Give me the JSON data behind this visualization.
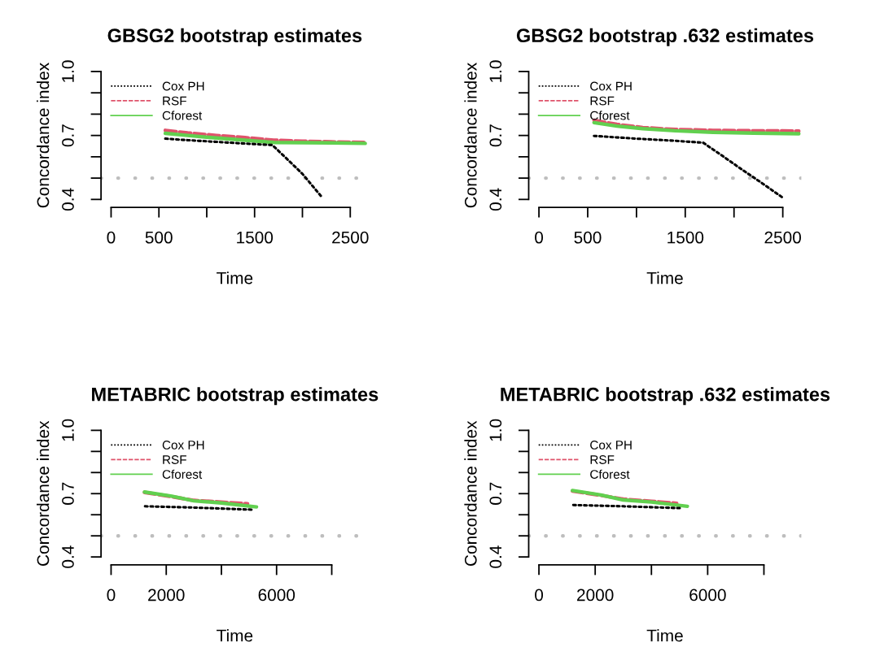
{
  "chart_data": [
    {
      "type": "line",
      "title": "GBSG2 bootstrap estimates",
      "xlabel": "Time",
      "ylabel": "Concordance index",
      "legend": "top left",
      "grid": false,
      "xlim": [
        -105,
        2690
      ],
      "ylim": [
        0.4,
        1.0
      ],
      "xticks": [
        0,
        500,
        {
          "value": 1000,
          "label": null
        },
        1500,
        {
          "value": 2000,
          "label": null
        },
        2500
      ],
      "yticks": [
        {
          "value": 0.4,
          "label": "0.4"
        },
        {
          "value": 0.5,
          "label": null
        },
        {
          "value": 0.6,
          "label": null
        },
        {
          "value": 0.7,
          "label": "0.7"
        },
        {
          "value": 0.8,
          "label": null
        },
        {
          "value": 0.9,
          "label": null
        },
        {
          "value": 1.0,
          "label": "1.0"
        }
      ],
      "ref_lines": [
        {
          "axis": "y",
          "value": 0.5,
          "color": "#bebebe",
          "line_style": "dotted"
        }
      ],
      "series": [
        {
          "name": "Cox PH",
          "color": "#000000",
          "line_style": "dotted",
          "x": [
            567,
            800,
            1100,
            1400,
            1686,
            1850,
            2000,
            2205
          ],
          "values": [
            0.685,
            0.678,
            0.67,
            0.662,
            0.655,
            0.585,
            0.52,
            0.41
          ]
        },
        {
          "name": "RSF",
          "color": "#df536b",
          "line_style": "dashed",
          "x": [
            567,
            800,
            1100,
            1400,
            1700,
            2000,
            2300,
            2656
          ],
          "values": [
            0.724,
            0.712,
            0.7,
            0.69,
            0.678,
            0.673,
            0.67,
            0.667
          ]
        },
        {
          "name": "Cforest",
          "color": "#61d04f",
          "line_style": "solid",
          "x": [
            567,
            800,
            1100,
            1400,
            1700,
            2000,
            2300,
            2656
          ],
          "values": [
            0.71,
            0.7,
            0.688,
            0.678,
            0.667,
            0.666,
            0.665,
            0.663
          ]
        }
      ]
    },
    {
      "type": "line",
      "title": "GBSG2 bootstrap .632 estimates",
      "xlabel": "Time",
      "ylabel": "Concordance index",
      "legend": "top left",
      "grid": false,
      "xlim": [
        -105,
        2690
      ],
      "ylim": [
        0.4,
        1.0
      ],
      "xticks": [
        0,
        500,
        {
          "value": 1000,
          "label": null
        },
        1500,
        {
          "value": 2000,
          "label": null
        },
        2500
      ],
      "yticks": [
        {
          "value": 0.4,
          "label": "0.4"
        },
        {
          "value": 0.5,
          "label": null
        },
        {
          "value": 0.6,
          "label": null
        },
        {
          "value": 0.7,
          "label": "0.7"
        },
        {
          "value": 0.8,
          "label": null
        },
        {
          "value": 0.9,
          "label": null
        },
        {
          "value": 1.0,
          "label": "1.0"
        }
      ],
      "ref_lines": [
        {
          "axis": "y",
          "value": 0.5,
          "color": "#bebebe",
          "line_style": "dotted"
        }
      ],
      "series": [
        {
          "name": "Cox PH",
          "color": "#000000",
          "line_style": "dotted",
          "x": [
            565,
            1000,
            1400,
            1684,
            1892,
            2094,
            2298,
            2500
          ],
          "values": [
            0.698,
            0.685,
            0.675,
            0.666,
            0.601,
            0.536,
            0.473,
            0.408
          ]
        },
        {
          "name": "RSF",
          "color": "#df536b",
          "line_style": "dashed",
          "x": [
            565,
            800,
            1064,
            1400,
            1785,
            2200,
            2664
          ],
          "values": [
            0.771,
            0.752,
            0.737,
            0.728,
            0.724,
            0.722,
            0.721
          ]
        },
        {
          "name": "Cforest",
          "color": "#61d04f",
          "line_style": "solid",
          "x": [
            565,
            800,
            1064,
            1400,
            1785,
            2200,
            2664
          ],
          "values": [
            0.76,
            0.744,
            0.732,
            0.722,
            0.715,
            0.711,
            0.708
          ]
        }
      ]
    },
    {
      "type": "line",
      "title": "METABRIC bootstrap estimates",
      "xlabel": "Time",
      "ylabel": "Concordance index",
      "legend": "top left",
      "grid": false,
      "xlim": [
        -364,
        9330
      ],
      "ylim": [
        0.4,
        1.0
      ],
      "xticks": [
        0,
        2000,
        {
          "value": 4000,
          "label": null
        },
        6000,
        {
          "value": 8000,
          "label": null
        }
      ],
      "yticks": [
        {
          "value": 0.4,
          "label": "0.4"
        },
        {
          "value": 0.5,
          "label": null
        },
        {
          "value": 0.6,
          "label": null
        },
        {
          "value": 0.7,
          "label": "0.7"
        },
        {
          "value": 0.8,
          "label": null
        },
        {
          "value": 0.9,
          "label": null
        },
        {
          "value": 1.0,
          "label": "1.0"
        }
      ],
      "ref_lines": [
        {
          "axis": "y",
          "value": 0.5,
          "color": "#bebebe",
          "line_style": "dotted"
        }
      ],
      "series": [
        {
          "name": "Cox PH",
          "color": "#000000",
          "line_style": "dotted",
          "x": [
            1232,
            3000,
            5123
          ],
          "values": [
            0.64,
            0.634,
            0.624
          ]
        },
        {
          "name": "RSF",
          "color": "#df536b",
          "line_style": "dashed",
          "x": [
            1212,
            2200,
            3000,
            4000,
            4946
          ],
          "values": [
            0.706,
            0.686,
            0.668,
            0.66,
            0.652
          ]
        },
        {
          "name": "Cforest",
          "color": "#61d04f",
          "line_style": "solid",
          "x": [
            1212,
            2200,
            3000,
            4000,
            5271
          ],
          "values": [
            0.708,
            0.688,
            0.666,
            0.656,
            0.637
          ]
        }
      ]
    },
    {
      "type": "line",
      "title": "METABRIC bootstrap .632 estimates",
      "xlabel": "Time",
      "ylabel": "Concordance index",
      "legend": "top left",
      "grid": false,
      "xlim": [
        -364,
        9330
      ],
      "ylim": [
        0.4,
        1.0
      ],
      "xticks": [
        0,
        2000,
        {
          "value": 4000,
          "label": null
        },
        6000,
        {
          "value": 8000,
          "label": null
        }
      ],
      "yticks": [
        {
          "value": 0.4,
          "label": "0.4"
        },
        {
          "value": 0.5,
          "label": null
        },
        {
          "value": 0.6,
          "label": null
        },
        {
          "value": 0.7,
          "label": "0.7"
        },
        {
          "value": 0.8,
          "label": null
        },
        {
          "value": 0.9,
          "label": null
        },
        {
          "value": 1.0,
          "label": "1.0"
        }
      ],
      "ref_lines": [
        {
          "axis": "y",
          "value": 0.5,
          "color": "#bebebe",
          "line_style": "dotted"
        }
      ],
      "series": [
        {
          "name": "Cox PH",
          "color": "#000000",
          "line_style": "dotted",
          "x": [
            1221,
            3000,
            5096
          ],
          "values": [
            0.646,
            0.64,
            0.631
          ]
        },
        {
          "name": "RSF",
          "color": "#df536b",
          "line_style": "dashed",
          "x": [
            1191,
            2200,
            3000,
            4000,
            4896
          ],
          "values": [
            0.712,
            0.692,
            0.674,
            0.664,
            0.654
          ]
        },
        {
          "name": "Cforest",
          "color": "#61d04f",
          "line_style": "solid",
          "x": [
            1191,
            2200,
            2994,
            4000,
            5277
          ],
          "values": [
            0.715,
            0.694,
            0.67,
            0.66,
            0.64
          ]
        }
      ]
    }
  ]
}
